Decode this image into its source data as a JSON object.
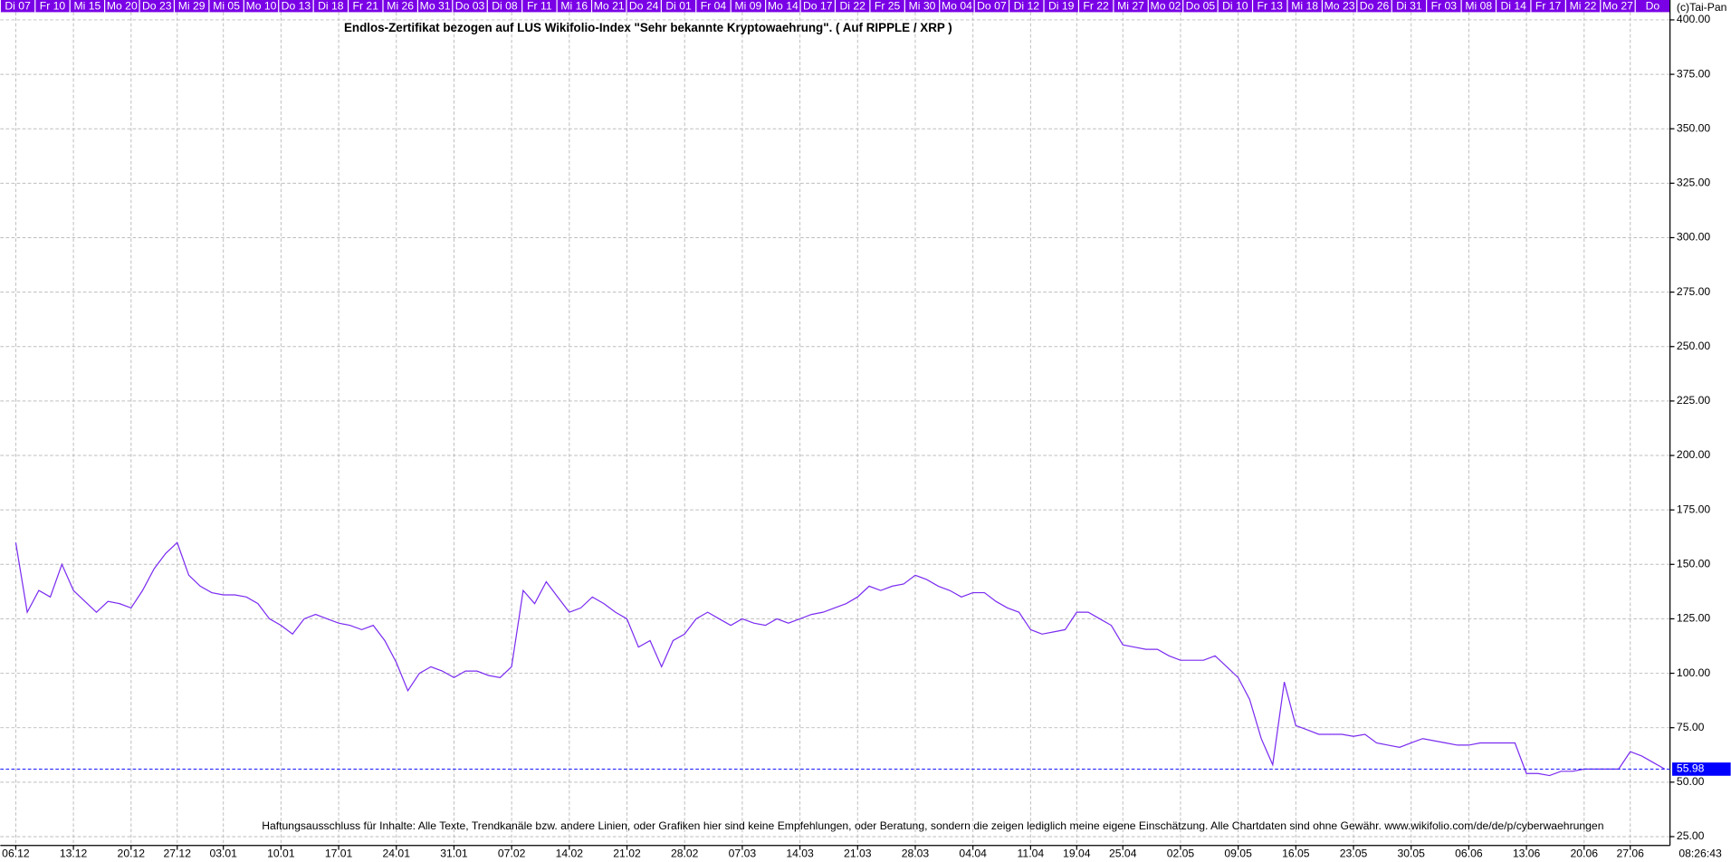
{
  "chart_data": {
    "type": "line",
    "title": "Endlos-Zertifikat bezogen auf LUS Wikifolio-Index \"Sehr bekannte Kryptowaehrung\". ( Auf RIPPLE / XRP )",
    "copyright": "(c)Tai-Pan",
    "disclaimer": "Haftungsausschluss für Inhalte: Alle Texte, Trendkanäle bzw. andere Linien, oder Grafiken hier sind keine Empfehlungen, oder Beratung, sondern die zeigen lediglich meine eigene Einschätzung. Alle Chartdaten sind ohne Gewähr.  www.wikifolio.com/de/de/p/cyberwaehrungen",
    "time": "08:26:43",
    "top_labels": [
      "Di 07",
      "Fr 10",
      "Mi 15",
      "Mo 20",
      "Do 23",
      "Mi 29",
      "Mi 05",
      "Mo 10",
      "Do 13",
      "Di 18",
      "Fr 21",
      "Mi 26",
      "Mo 31",
      "Do 03",
      "Di 08",
      "Fr 11",
      "Mi 16",
      "Mo 21",
      "Do 24",
      "Di 01",
      "Fr 04",
      "Mi 09",
      "Mo 14",
      "Do 17",
      "Di 22",
      "Fr 25",
      "Mi 30",
      "Mo 04",
      "Do 07",
      "Di 12",
      "Di 19",
      "Fr 22",
      "Mi 27",
      "Mo 02",
      "Do 05",
      "Di 10",
      "Fr 13",
      "Mi 18",
      "Mo 23",
      "Do 26",
      "Di 31",
      "Fr 03",
      "Mi 08",
      "Di 14",
      "Fr 17",
      "Mi 22",
      "Mo 27",
      "Do"
    ],
    "categories": [
      "06.12",
      null,
      null,
      null,
      null,
      "13.12",
      null,
      null,
      null,
      null,
      "20.12",
      null,
      null,
      null,
      "27.12",
      null,
      null,
      null,
      "03.01",
      null,
      null,
      null,
      null,
      "10.01",
      null,
      null,
      null,
      null,
      "17.01",
      null,
      null,
      null,
      null,
      "24.01",
      null,
      null,
      null,
      null,
      "31.01",
      null,
      null,
      null,
      null,
      "07.02",
      null,
      null,
      null,
      null,
      "14.02",
      null,
      null,
      null,
      null,
      "21.02",
      null,
      null,
      null,
      null,
      "28.02",
      null,
      null,
      null,
      null,
      "07.03",
      null,
      null,
      null,
      null,
      "14.03",
      null,
      null,
      null,
      null,
      "21.03",
      null,
      null,
      null,
      null,
      "28.03",
      null,
      null,
      null,
      null,
      "04.04",
      null,
      null,
      null,
      null,
      "11.04",
      null,
      null,
      null,
      "19.04",
      null,
      null,
      null,
      "25.04",
      null,
      null,
      null,
      null,
      "02.05",
      null,
      null,
      null,
      null,
      "09.05",
      null,
      null,
      null,
      null,
      "16.05",
      null,
      null,
      null,
      null,
      "23.05",
      null,
      null,
      null,
      null,
      "30.05",
      null,
      null,
      null,
      null,
      "06.06",
      null,
      null,
      null,
      null,
      "13.06",
      null,
      null,
      null,
      null,
      "20.06",
      null,
      null,
      null,
      "27.06",
      null,
      null,
      null
    ],
    "series": [
      {
        "color": "#7a2cf0",
        "values": [
          160,
          128,
          138,
          135,
          150,
          138,
          133,
          128,
          133,
          132,
          130,
          138,
          148,
          155,
          160,
          145,
          140,
          137,
          136,
          136,
          135,
          132,
          125,
          122,
          118,
          125,
          127,
          125,
          123,
          122,
          120,
          122,
          115,
          105,
          92,
          100,
          103,
          101,
          98,
          101,
          101,
          99,
          98,
          103,
          138,
          132,
          142,
          135,
          128,
          130,
          135,
          132,
          128,
          125,
          112,
          115,
          103,
          115,
          118,
          125,
          128,
          125,
          122,
          125,
          123,
          122,
          125,
          123,
          125,
          127,
          128,
          130,
          132,
          135,
          140,
          138,
          140,
          141,
          145,
          143,
          140,
          138,
          135,
          137,
          137,
          133,
          130,
          128,
          120,
          118,
          119,
          120,
          128,
          128,
          125,
          122,
          113,
          112,
          111,
          111,
          108,
          106,
          106,
          106,
          108,
          103,
          98,
          88,
          70,
          58,
          96,
          76,
          74,
          72,
          72,
          72,
          71,
          72,
          68,
          67,
          66,
          68,
          70,
          69,
          68,
          67,
          67,
          68,
          68,
          68,
          68,
          54,
          54,
          53,
          55,
          55,
          56,
          56,
          56,
          56,
          64,
          62,
          59,
          56
        ]
      }
    ],
    "last_value": 55.98,
    "ylim": [
      25,
      400
    ],
    "yticks": [
      {
        "value": 25,
        "label": "25.00"
      },
      {
        "value": 50,
        "label": "50.00"
      },
      {
        "value": 75,
        "label": "75.00"
      },
      {
        "value": 100,
        "label": "100.00"
      },
      {
        "value": 125,
        "label": "125.00"
      },
      {
        "value": 150,
        "label": "150.00"
      },
      {
        "value": 175,
        "label": "175.00"
      },
      {
        "value": 200,
        "label": "200.00"
      },
      {
        "value": 225,
        "label": "225.00"
      },
      {
        "value": 250,
        "label": "250.00"
      },
      {
        "value": 275,
        "label": "275.00"
      },
      {
        "value": 300,
        "label": "300.00"
      },
      {
        "value": 325,
        "label": "325.00"
      },
      {
        "value": 350,
        "label": "350.00"
      },
      {
        "value": 375,
        "label": "375.00"
      },
      {
        "value": 400,
        "label": "400.00"
      }
    ],
    "grid": true
  }
}
